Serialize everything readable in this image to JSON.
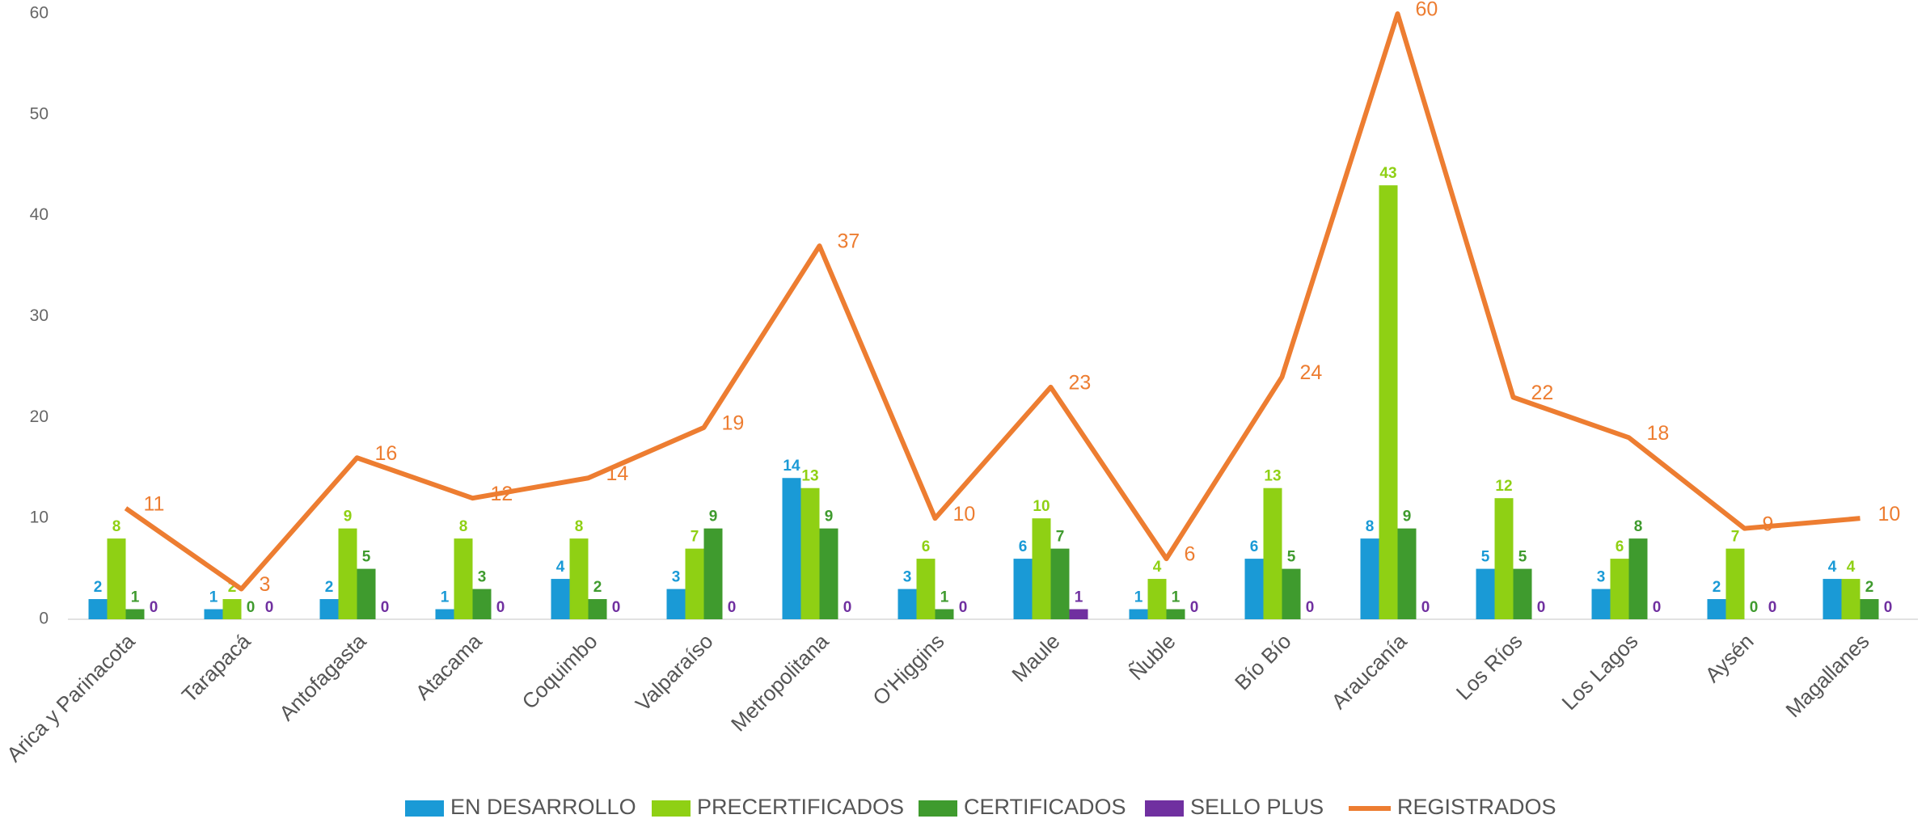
{
  "chart_data": {
    "type": "bar",
    "categories": [
      "Arica y Parinacota",
      "Tarapacá",
      "Antofagasta",
      "Atacama",
      "Coquimbo",
      "Valparaíso",
      "Metropolitana",
      "O'Higgins",
      "Maule",
      "Ñuble",
      "Bío Bío",
      "Araucanía",
      "Los Ríos",
      "Los Lagos",
      "Aysén",
      "Magallanes"
    ],
    "series": [
      {
        "name": "EN DESARROLLO",
        "color": "#1a9ad6",
        "values": [
          2,
          1,
          2,
          1,
          4,
          3,
          14,
          3,
          6,
          1,
          6,
          8,
          5,
          3,
          2,
          4
        ]
      },
      {
        "name": "PRECERTIFICADOS",
        "color": "#8fd014",
        "values": [
          8,
          2,
          9,
          8,
          8,
          7,
          13,
          6,
          10,
          4,
          13,
          43,
          12,
          6,
          7,
          4
        ]
      },
      {
        "name": "CERTIFICADOS",
        "color": "#3f9b2e",
        "values": [
          1,
          0,
          5,
          3,
          2,
          9,
          9,
          1,
          7,
          1,
          5,
          9,
          5,
          8,
          0,
          2
        ]
      },
      {
        "name": "SELLO PLUS",
        "color": "#7030a0",
        "values": [
          0,
          0,
          0,
          0,
          0,
          0,
          0,
          0,
          1,
          0,
          0,
          0,
          0,
          0,
          0,
          0
        ]
      },
      {
        "name": "REGISTRADOS",
        "color": "#ed7d31",
        "type": "line",
        "values": [
          11,
          3,
          16,
          12,
          14,
          19,
          37,
          10,
          23,
          6,
          24,
          60,
          22,
          18,
          9,
          10
        ]
      }
    ],
    "ylim": [
      0,
      60
    ],
    "yticks": [
      0,
      10,
      20,
      30,
      40,
      50,
      60
    ],
    "grid": false,
    "legend": "bottom"
  }
}
